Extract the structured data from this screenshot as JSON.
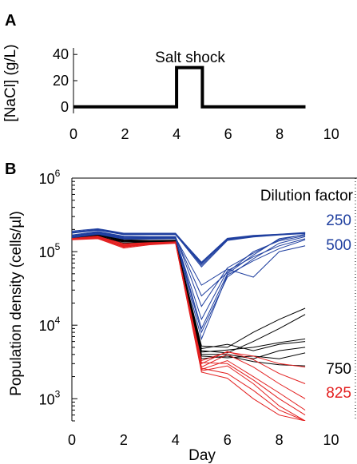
{
  "chart_data": [
    {
      "type": "line",
      "panel_label": "A",
      "ylabel": "[NaCl] (g/L)",
      "xlabel": "",
      "annotation": "Salt shock",
      "xlim": [
        0,
        11
      ],
      "ylim": [
        -5,
        45
      ],
      "xticks": [
        "0",
        "2",
        "4",
        "6",
        "8",
        "10"
      ],
      "yticks": [
        "0",
        "20",
        "40"
      ],
      "grid": false,
      "series": [
        {
          "x": [
            0,
            4,
            4,
            5,
            5,
            9
          ],
          "values": [
            0,
            0,
            30,
            30,
            0,
            0
          ],
          "color": "#000000"
        }
      ]
    },
    {
      "type": "line",
      "panel_label": "B",
      "ylabel": "Population density (cells/µl)",
      "xlabel": "Day",
      "legend_title": "Dilution factor",
      "yscale": "log",
      "xlim": [
        0,
        11
      ],
      "ylim": [
        500,
        1000000
      ],
      "xticks": [
        "0",
        "2",
        "4",
        "6",
        "8",
        "10"
      ],
      "yticks": [
        {
          "base": "10",
          "exp": "3",
          "value": 1000
        },
        {
          "base": "10",
          "exp": "4",
          "value": 10000
        },
        {
          "base": "10",
          "exp": "5",
          "value": 100000
        },
        {
          "base": "10",
          "exp": "6",
          "value": 1000000
        }
      ],
      "grid": false,
      "groups": [
        {
          "name": "250",
          "color": "#1f3f9f",
          "lines": [
            [
              190000,
              205000,
              178000,
              178000,
              178000,
              70000,
              150000,
              165000,
              172000,
              180000
            ],
            [
              185000,
              200000,
              175000,
              175000,
              175000,
              65000,
              145000,
              160000,
              170000,
              178000
            ],
            [
              180000,
              198000,
              172000,
              172000,
              172000,
              62000,
              142000,
              158000,
              168000,
              176000
            ],
            [
              178000,
              195000,
              170000,
              170000,
              170000,
              68000,
              148000,
              162000,
              170000,
              180000
            ],
            [
              182000,
              202000,
              176000,
              176000,
              176000,
              72000,
              152000,
              166000,
              173000,
              182000
            ]
          ]
        },
        {
          "name": "500",
          "color": "#1f3f9f",
          "lines": [
            [
              165000,
              185000,
              160000,
              158000,
              158000,
              9000,
              50000,
              90000,
              150000,
              170000
            ],
            [
              160000,
              180000,
              155000,
              155000,
              155000,
              8000,
              45000,
              80000,
              130000,
              160000
            ],
            [
              158000,
              175000,
              150000,
              150000,
              152000,
              12000,
              55000,
              85000,
              120000,
              150000
            ],
            [
              162000,
              182000,
              158000,
              156000,
              156000,
              25000,
              52000,
              100000,
              140000,
              165000
            ],
            [
              168000,
              188000,
              162000,
              160000,
              160000,
              18000,
              60000,
              95000,
              145000,
              172000
            ],
            [
              155000,
              172000,
              148000,
              148000,
              150000,
              6500,
              48000,
              75000,
              110000,
              145000
            ],
            [
              160000,
              178000,
              152000,
              152000,
              154000,
              35000,
              58000,
              45000,
              100000,
              120000
            ]
          ]
        },
        {
          "name": "750",
          "color": "#000000",
          "lines": [
            [
              155000,
              170000,
              145000,
              142000,
              143000,
              5200,
              5000,
              8000,
              12000,
              17000
            ],
            [
              152000,
              165000,
              140000,
              140000,
              140000,
              4500,
              4200,
              6000,
              9000,
              14000
            ],
            [
              150000,
              160000,
              138000,
              138000,
              138000,
              4800,
              5500,
              4500,
              5500,
              6000
            ],
            [
              153000,
              168000,
              142000,
              140000,
              141000,
              4000,
              4000,
              3500,
              4500,
              5000
            ],
            [
              148000,
              158000,
              135000,
              136000,
              137000,
              3800,
              3600,
              3800,
              3500,
              4200
            ],
            [
              150000,
              162000,
              130000,
              134000,
              139000,
              3500,
              3800,
              3200,
              2900,
              2800
            ],
            [
              154000,
              166000,
              128000,
              137000,
              140000,
              4300,
              4600,
              5000,
              5800,
              6500
            ]
          ]
        },
        {
          "name": "825",
          "color": "#e32020",
          "lines": [
            [
              150000,
              162000,
              128000,
              133000,
              135000,
              3000,
              4400,
              3400,
              2200,
              1600
            ],
            [
              148000,
              158000,
              125000,
              130000,
              133000,
              2700,
              4000,
              2700,
              1600,
              1000
            ],
            [
              146000,
              155000,
              120000,
              128000,
              132000,
              2500,
              3300,
              2000,
              1200,
              700
            ],
            [
              147000,
              152000,
              115000,
              126000,
              131000,
              2400,
              2800,
              1600,
              800,
              500
            ],
            [
              149000,
              160000,
              118000,
              129000,
              134000,
              3100,
              3000,
              1800,
              1000,
              600
            ],
            [
              151000,
              163000,
              122000,
              131000,
              136000,
              2600,
              2200,
              1300,
              700,
              500
            ],
            [
              145000,
              150000,
              112000,
              124000,
              130000,
              2300,
              1900,
              1000,
              600,
              500
            ],
            [
              150000,
              157000,
              116000,
              127000,
              132000,
              3300,
              4300,
              3800,
              3000,
              2700
            ]
          ]
        }
      ]
    }
  ]
}
